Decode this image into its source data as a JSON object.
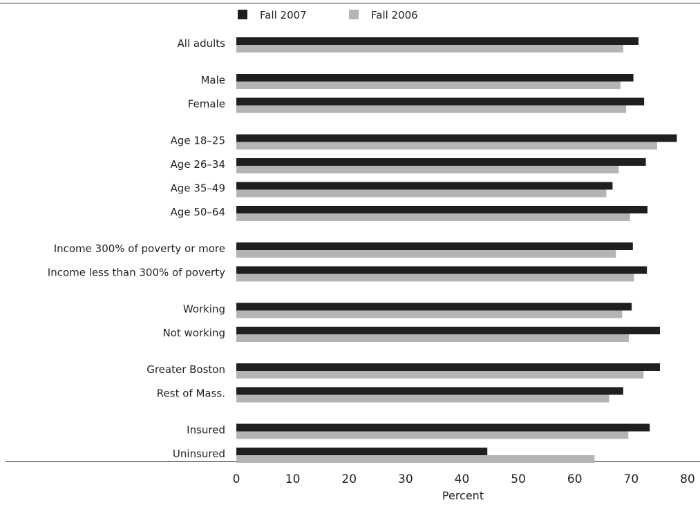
{
  "chart_data": {
    "type": "bar",
    "orientation": "horizontal",
    "categories": [
      "All adults",
      "Male",
      "Female",
      "Age 18–25",
      "Age 26–34",
      "Age 35–49",
      "Age 50–64",
      "Income 300% of poverty or more",
      "Income less than 300% of poverty",
      "Working",
      "Not working",
      "Greater Boston",
      "Rest of Mass.",
      "Insured",
      "Uninsured"
    ],
    "groups": [
      [
        0
      ],
      [
        1,
        2
      ],
      [
        3,
        4,
        5,
        6
      ],
      [
        7,
        8
      ],
      [
        9,
        10
      ],
      [
        11,
        12
      ],
      [
        13,
        14
      ]
    ],
    "series": [
      {
        "name": "Fall 2007",
        "color": "#1f1f1f",
        "values": [
          71.3,
          70.4,
          72.3,
          78.1,
          72.6,
          66.7,
          72.9,
          70.3,
          72.8,
          70.1,
          75.1,
          75.1,
          68.6,
          73.3,
          44.5
        ]
      },
      {
        "name": "Fall 2006",
        "color": "#b4b4b6",
        "values": [
          68.6,
          68.1,
          69.1,
          74.6,
          67.8,
          65.6,
          69.8,
          67.3,
          70.5,
          68.4,
          69.6,
          72.2,
          66.1,
          69.5,
          63.5
        ]
      }
    ],
    "xlabel": "Percent",
    "ylabel": "",
    "xlim": [
      0,
      80
    ],
    "xticks": [
      0,
      10,
      20,
      30,
      40,
      50,
      60,
      70,
      80
    ],
    "grid": false,
    "legend": "top"
  }
}
